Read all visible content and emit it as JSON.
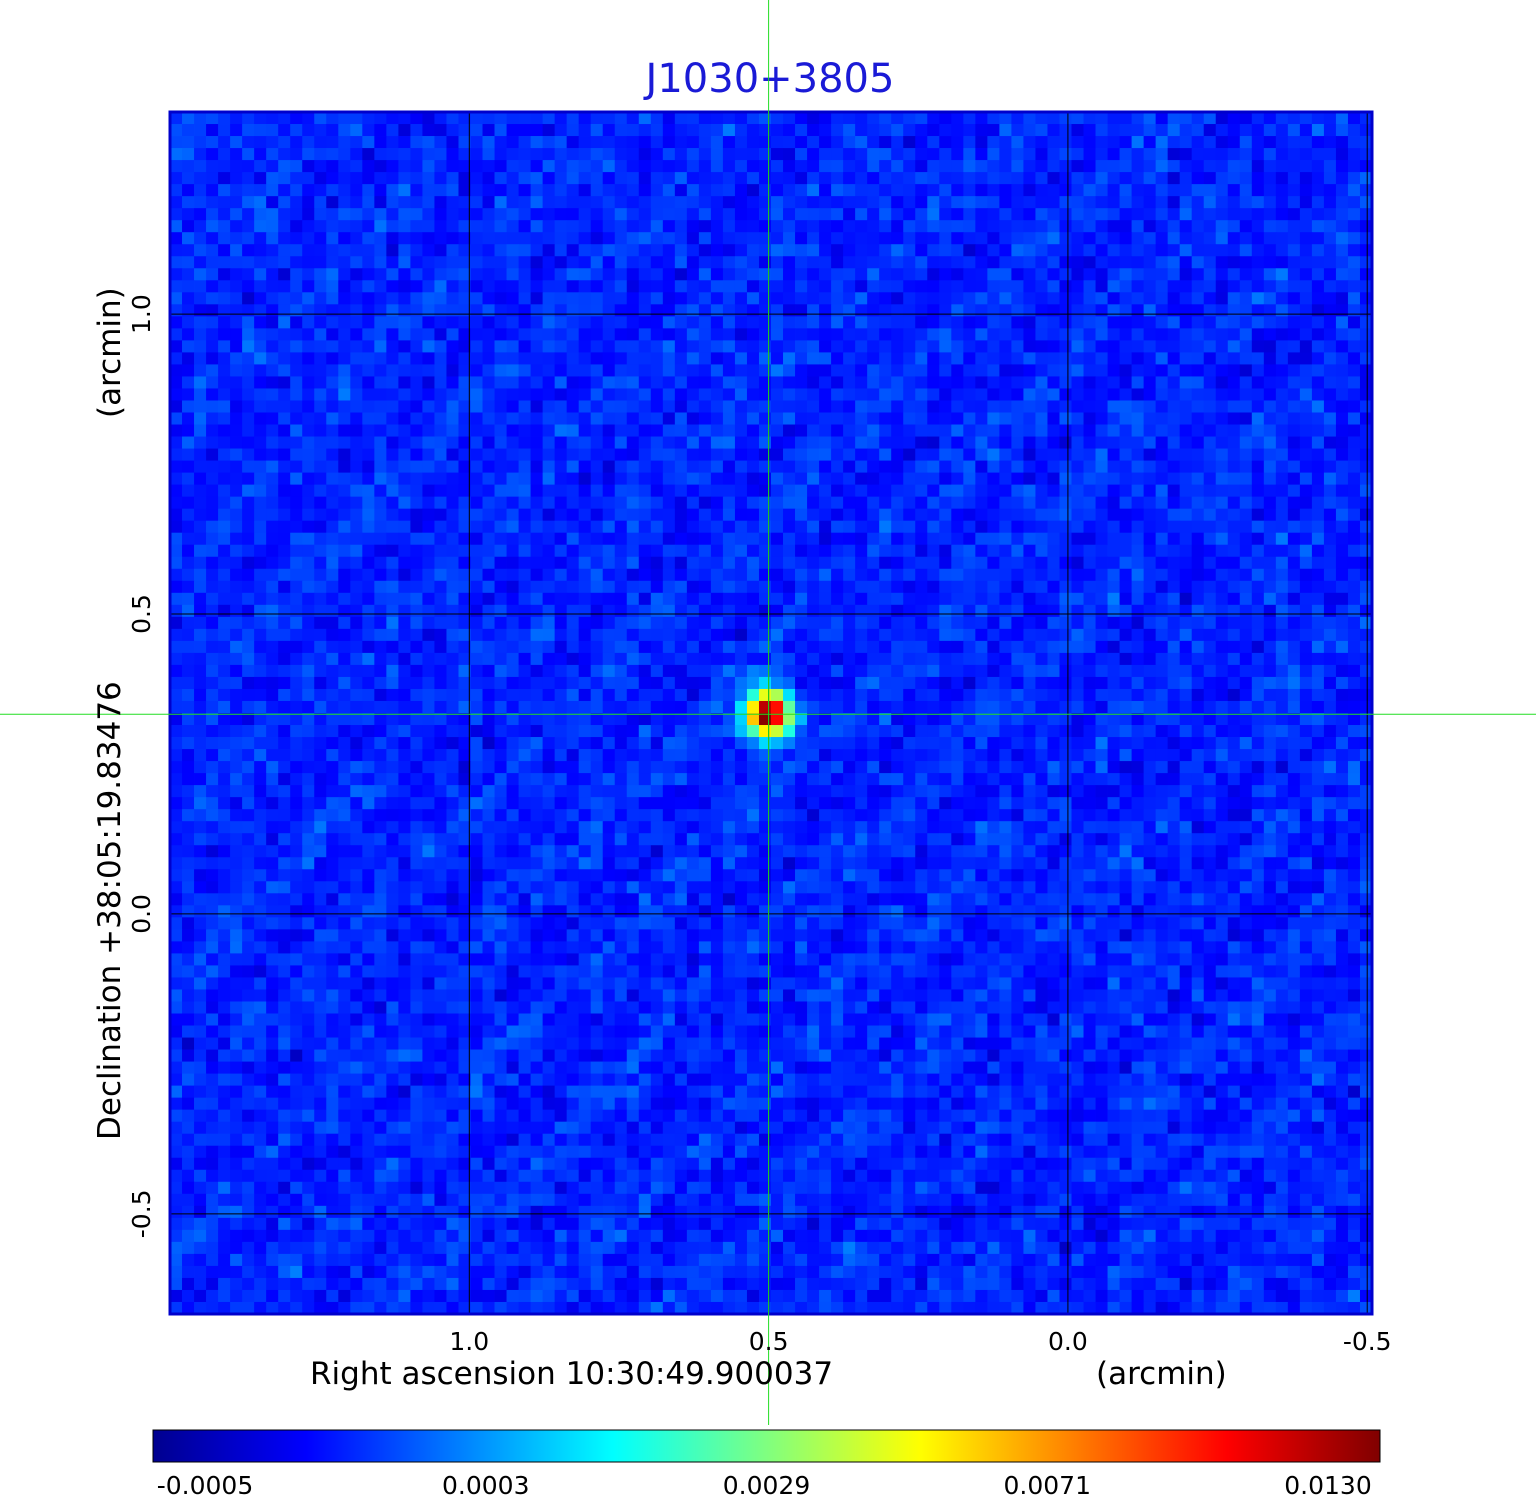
{
  "chart_data": {
    "type": "heatmap",
    "title": "J1030+3805",
    "title_color": "#1a1ad6",
    "xlabel_left": "Right ascension  10:30:49.900037",
    "xlabel_right": "(arcmin)",
    "ylabel_left": "Declination  +38:05:19.83476",
    "ylabel_right": "(arcmin)",
    "x_ticks": [
      {
        "value": 1.0,
        "label": "1.0"
      },
      {
        "value": 0.5,
        "label": "0.5"
      },
      {
        "value": 0.0,
        "label": "0.0"
      },
      {
        "value": -0.5,
        "label": "-0.5"
      }
    ],
    "y_ticks": [
      {
        "value": 1.0,
        "label": "1.0"
      },
      {
        "value": 0.5,
        "label": "0.5"
      },
      {
        "value": 0.0,
        "label": "0.0"
      },
      {
        "value": -0.5,
        "label": "-0.5"
      }
    ],
    "xlim": [
      1.5,
      -0.508
    ],
    "ylim": [
      -0.667,
      1.337
    ],
    "grid": true,
    "crosshair": {
      "x": 0.5,
      "y": 0.333,
      "color": "#22dd22"
    },
    "source": {
      "x": 0.5,
      "y": 0.333,
      "peak": 0.013
    },
    "colorbar": {
      "colormap": "jet",
      "min": -0.0005,
      "max": 0.013,
      "ticks": [
        {
          "value": -0.0005,
          "label": "-0.0005"
        },
        {
          "value": 0.0003,
          "label": "0.0003"
        },
        {
          "value": 0.0029,
          "label": "0.0029"
        },
        {
          "value": 0.0071,
          "label": "0.0071"
        },
        {
          "value": 0.013,
          "label": "0.0130"
        }
      ]
    },
    "frame_color": "#0000cc"
  }
}
